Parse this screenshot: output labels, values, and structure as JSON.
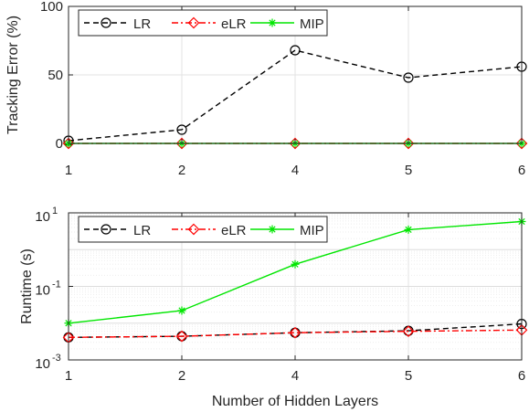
{
  "chart_data": [
    {
      "type": "line",
      "title": "",
      "xlabel": "",
      "ylabel": "Tracking Error (%)",
      "y_scale": "linear",
      "ylim": [
        0,
        100
      ],
      "categories": [
        "1",
        "2",
        "4",
        "5",
        "6"
      ],
      "y_ticks": [
        "0",
        "50",
        "100"
      ],
      "grid": true,
      "legend": "top-left, horizontal",
      "series": [
        {
          "name": "LR",
          "values": [
            2,
            10,
            68,
            48,
            56
          ],
          "color": "#000000",
          "style": "dashed",
          "marker": "circle"
        },
        {
          "name": "eLR",
          "values": [
            0,
            0,
            0,
            0,
            0
          ],
          "color": "#ff0000",
          "style": "dash-dot",
          "marker": "diamond"
        },
        {
          "name": "MIP",
          "values": [
            0,
            0,
            0,
            0,
            0
          ],
          "color": "#00e600",
          "style": "solid",
          "marker": "asterisk"
        }
      ]
    },
    {
      "type": "line",
      "title": "",
      "xlabel": "Number of Hidden Layers",
      "ylabel": "Runtime (s)",
      "y_scale": "log",
      "ylim": [
        0.001,
        10
      ],
      "categories": [
        "1",
        "2",
        "4",
        "5",
        "6"
      ],
      "y_ticks": [
        {
          "base": "10",
          "exp": "1"
        },
        {
          "base": "10",
          "exp": "-1"
        },
        {
          "base": "10",
          "exp": "-3"
        }
      ],
      "grid": true,
      "legend": "top-left, horizontal",
      "series": [
        {
          "name": "LR",
          "values": [
            0.0041,
            0.0044,
            0.0055,
            0.0062,
            0.0095
          ],
          "color": "#000000",
          "style": "dashed",
          "marker": "circle"
        },
        {
          "name": "eLR",
          "values": [
            0.0041,
            0.0044,
            0.0055,
            0.006,
            0.0065
          ],
          "color": "#ff0000",
          "style": "dash-dot",
          "marker": "diamond"
        },
        {
          "name": "MIP",
          "values": [
            0.01,
            0.022,
            0.4,
            3.5,
            5.8
          ],
          "color": "#00e600",
          "style": "solid",
          "marker": "asterisk"
        }
      ]
    }
  ]
}
